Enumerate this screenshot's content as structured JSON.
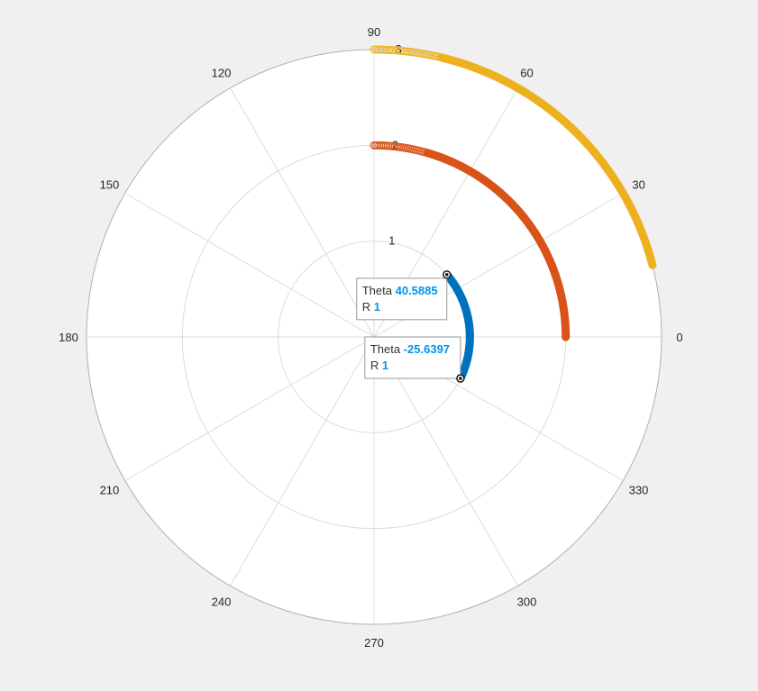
{
  "figure": {
    "background": "#f0f0f0",
    "axes_background": "#ffffff",
    "grid_color": "#dcdcdc",
    "outer_ring_color": "#b0b0b0"
  },
  "chart_data": {
    "type": "scatter",
    "coordinate_system": "polar",
    "theta_units": "degrees",
    "theta_ticks": [
      "0",
      "30",
      "60",
      "90",
      "120",
      "150",
      "180",
      "210",
      "240",
      "270",
      "300",
      "330"
    ],
    "r_ticks": [
      "1",
      "2",
      "3"
    ],
    "rlim": [
      0,
      3
    ],
    "grid": true,
    "series": [
      {
        "color": "#0072bd",
        "marker": "circle",
        "r": 1,
        "theta_start": -25.6397,
        "theta_end": 40.5885,
        "point_count": 60
      },
      {
        "color": "#d95319",
        "marker": "circle",
        "r": 2,
        "theta_start": 0,
        "theta_end": 90,
        "point_count": 90
      },
      {
        "color": "#edb120",
        "marker": "circle",
        "r": 3,
        "theta_start": 14.5,
        "theta_end": 90,
        "point_count": 90
      }
    ],
    "datatips": [
      {
        "theta_label": "Theta",
        "theta_value": "40.5885",
        "r_label": "R",
        "r_value": "1",
        "theta": 40.5885,
        "r": 1
      },
      {
        "theta_label": "Theta",
        "theta_value": "-25.6397",
        "r_label": "R",
        "r_value": "1",
        "theta": -25.6397,
        "r": 1
      }
    ]
  }
}
